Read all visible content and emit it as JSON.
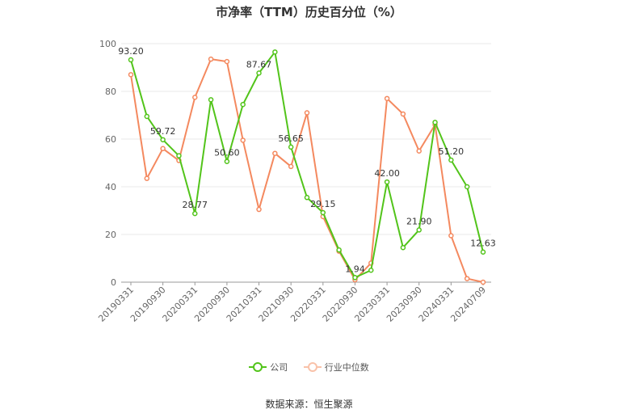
{
  "title": "市净率（TTM）历史百分位（%）",
  "source": "数据来源：恒生聚源",
  "colors": {
    "company": "#52c41a",
    "industry": "#f4895f",
    "grid": "#e8e8e8",
    "axis": "#666666",
    "label": "#333333"
  },
  "legend": {
    "company_label": "公司",
    "industry_label": "行业中位数"
  },
  "chart_data": {
    "type": "line",
    "title": "市净率（TTM）历史百分位（%）",
    "ylim": [
      0,
      100
    ],
    "yticks": [
      0,
      20,
      40,
      60,
      80,
      100
    ],
    "grid": true,
    "legend_position": "bottom",
    "x": [
      "20190331",
      "20190630",
      "20190930",
      "20191231",
      "20200331",
      "20200630",
      "20200930",
      "20201231",
      "20210331",
      "20210630",
      "20210930",
      "20211231",
      "20220331",
      "20220630",
      "20220930",
      "20221231",
      "20230331",
      "20230630",
      "20230930",
      "20231231",
      "20240331",
      "20240630",
      "20240709"
    ],
    "xtick_labels": [
      "20190331",
      "20190930",
      "20200331",
      "20200930",
      "20210331",
      "20210930",
      "20220331",
      "20220930",
      "20230331",
      "20230930",
      "20240331",
      "20240709"
    ],
    "series": [
      {
        "name": "公司",
        "color": "#52c41a",
        "values": [
          93.2,
          69.5,
          59.72,
          53.0,
          28.77,
          76.5,
          50.6,
          74.5,
          87.67,
          96.5,
          56.65,
          35.5,
          29.15,
          13.5,
          1.94,
          5.0,
          42.0,
          14.5,
          21.9,
          67.0,
          51.2,
          40.0,
          12.63
        ],
        "labels": [
          "93.20",
          null,
          "59.72",
          null,
          "28.77",
          null,
          "50.60",
          null,
          "87.67",
          null,
          "56.65",
          null,
          "29.15",
          null,
          "1.94",
          null,
          "42.00",
          null,
          "21.90",
          null,
          "51.20",
          null,
          "12.63"
        ]
      },
      {
        "name": "行业中位数",
        "color": "#f4895f",
        "values": [
          87.0,
          43.5,
          56.0,
          51.0,
          77.5,
          93.5,
          92.5,
          59.5,
          30.5,
          54.0,
          48.5,
          71.0,
          27.5,
          13.0,
          1.0,
          8.0,
          77.0,
          70.5,
          55.0,
          66.0,
          19.5,
          1.5,
          0.0
        ]
      }
    ]
  }
}
